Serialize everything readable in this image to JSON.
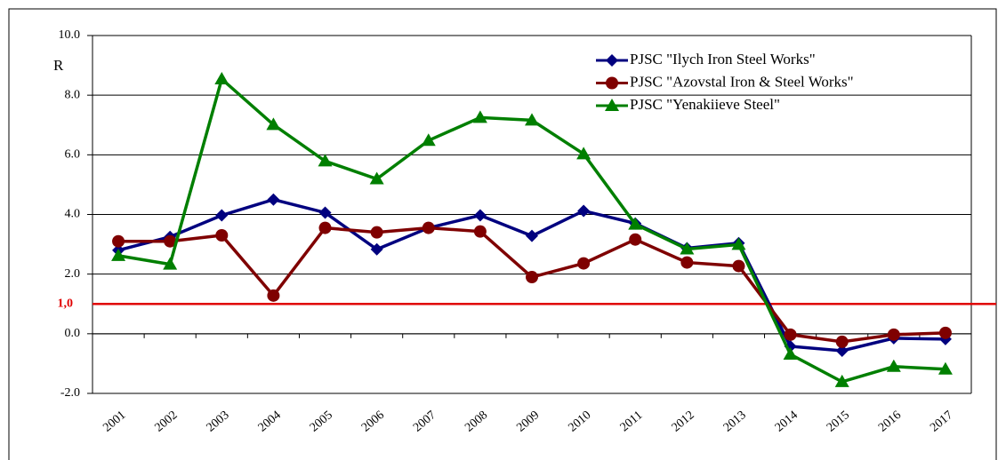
{
  "chart_data": {
    "type": "line",
    "y_label": "R",
    "categories": [
      "2001",
      "2002",
      "2003",
      "2004",
      "2005",
      "2006",
      "2007",
      "2008",
      "2009",
      "2010",
      "2011",
      "2012",
      "2013",
      "2014",
      "2015",
      "2016",
      "2017"
    ],
    "series": [
      {
        "name": "PJSC \"Ilych Iron Steel Works\"",
        "color": "#00007f",
        "marker": "diamond",
        "values": [
          2.8,
          3.25,
          3.97,
          4.5,
          4.06,
          2.83,
          3.55,
          3.97,
          3.28,
          4.12,
          3.7,
          2.87,
          3.04,
          -0.42,
          -0.57,
          -0.15,
          -0.18
        ]
      },
      {
        "name": "PJSC \"Azovstal Iron & Steel Works\"",
        "color": "#7f0000",
        "marker": "circle",
        "values": [
          3.1,
          3.1,
          3.3,
          1.28,
          3.55,
          3.4,
          3.55,
          3.43,
          1.9,
          2.36,
          3.16,
          2.39,
          2.27,
          -0.03,
          -0.27,
          -0.03,
          0.03
        ]
      },
      {
        "name": "PJSC \"Yenakiieve Steel\"",
        "color": "#007f00",
        "marker": "triangle",
        "values": [
          2.62,
          2.33,
          8.54,
          7.01,
          5.79,
          5.19,
          6.48,
          7.25,
          7.16,
          6.03,
          3.67,
          2.84,
          2.99,
          -0.69,
          -1.61,
          -1.1,
          -1.19
        ]
      }
    ],
    "ylim": [
      -2,
      10
    ],
    "yticks": [
      {
        "value": -2,
        "label": "-2.0"
      },
      {
        "value": 0,
        "label": "0.0"
      },
      {
        "value": 2,
        "label": "2.0"
      },
      {
        "value": 4,
        "label": "4.0"
      },
      {
        "value": 6,
        "label": "6.0"
      },
      {
        "value": 8,
        "label": "8.0"
      },
      {
        "value": 10,
        "label": "10.0"
      }
    ],
    "grid": true,
    "legend": "top-right",
    "reference_line": {
      "value": 1,
      "label": "1,0",
      "color": "#e00000"
    }
  }
}
